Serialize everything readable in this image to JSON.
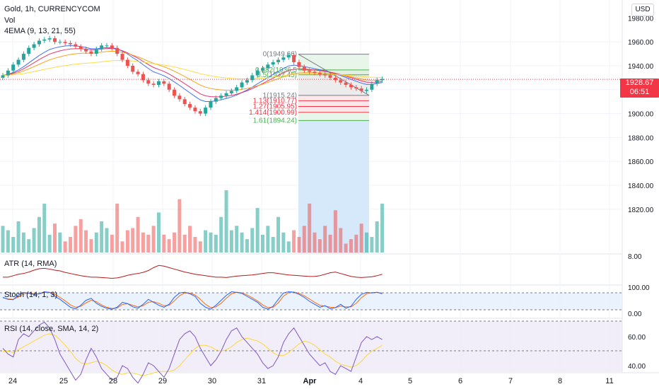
{
  "legend": {
    "symbol": "Gold, 1h, CURRENCYCOM",
    "vol": "Vol",
    "ema": "4EMA (9, 13, 21, 55)",
    "atr": "ATR (14, RMA)",
    "stoch": "Stoch (14, 1, 3)",
    "rsi": "RSI (14, close, SMA, 14, 2)"
  },
  "currency_button": "USD",
  "last_price": {
    "value": "1928.67",
    "countdown": "06:51"
  },
  "price_axis": {
    "ticks": [
      "1960.00",
      "1940.00",
      "1920.00",
      "1900.00",
      "1880.00",
      "1860.00",
      "1840.00",
      "1820.00"
    ],
    "values": [
      1960,
      1940,
      1920,
      1900,
      1880,
      1860,
      1840,
      1820
    ],
    "partial_top": "1980.00",
    "partial_top_value": 1980
  },
  "atr_axis": {
    "ticks": [
      "8.00"
    ]
  },
  "stoch_axis": {
    "ticks": [
      "100.00",
      "0.00"
    ]
  },
  "rsi_axis": {
    "ticks": [
      "60.00",
      "40.00"
    ]
  },
  "time_axis": {
    "labels": [
      "24",
      "25",
      "28",
      "29",
      "30",
      "31",
      "Apr",
      "4",
      "5",
      "6",
      "7",
      "8",
      "11"
    ]
  },
  "fibonacci": [
    {
      "label": "0(1949.66)",
      "price": 1949.66,
      "color": "#787b86"
    },
    {
      "label": "0.382(1936.5",
      "price": 1936.5,
      "color": "#4caf50"
    },
    {
      "label": "0.5(1932.45)",
      "price": 1932.45,
      "color": "#4caf50"
    },
    {
      "label": "1(1915.24)",
      "price": 1915.24,
      "color": "#787b86"
    },
    {
      "label": "1.13(1910.77)",
      "price": 1910.77,
      "color": "#f23645"
    },
    {
      "label": "1.27(1905.95)",
      "price": 1905.95,
      "color": "#f23645"
    },
    {
      "label": "1.414(1900.99)",
      "price": 1900.99,
      "color": "#f23645"
    },
    {
      "label": "1.61(1894.24)",
      "price": 1894.24,
      "color": "#4caf50"
    }
  ],
  "colors": {
    "up": "#26a69a",
    "down": "#ef5350",
    "last_price": "#f23645",
    "ema9": "#2962ff",
    "ema13": "#e91e63",
    "ema21": "#ff9800",
    "ema55": "#fdd835",
    "atr": "#b71c1c",
    "stoch_k": "#2962ff",
    "stoch_d": "#ff6d00",
    "rsi": "#7e57c2",
    "rsi_ma": "#fdd835"
  },
  "price_series": [
    1932,
    1936,
    1941,
    1945,
    1950,
    1955,
    1958,
    1961,
    1962,
    1963,
    1960,
    1960,
    1959,
    1958,
    1956,
    1954,
    1952,
    1950,
    1954,
    1957,
    1957,
    1955,
    1950,
    1945,
    1940,
    1935,
    1933,
    1928,
    1925,
    1924,
    1927,
    1925,
    1920,
    1915,
    1912,
    1908,
    1905,
    1902,
    1900,
    1905,
    1910,
    1913,
    1915,
    1917,
    1919,
    1922,
    1926,
    1928,
    1932,
    1936,
    1938,
    1941,
    1943,
    1945,
    1947,
    1949,
    1943,
    1939,
    1936,
    1935,
    1934,
    1933,
    1932,
    1930,
    1928,
    1926,
    1924,
    1922,
    1921,
    1919,
    1920,
    1925,
    1928,
    1929
  ],
  "volume_series": [
    12,
    10,
    7,
    14,
    9,
    6,
    11,
    16,
    22,
    8,
    13,
    9,
    5,
    7,
    12,
    15,
    10,
    6,
    9,
    14,
    11,
    8,
    22,
    5,
    10,
    11,
    16,
    9,
    8,
    12,
    18,
    8,
    6,
    9,
    24,
    8,
    12,
    7,
    5,
    10,
    9,
    8,
    16,
    28,
    10,
    12,
    9,
    6,
    11,
    20,
    8,
    12,
    7,
    16,
    9,
    5,
    10,
    7,
    12,
    22,
    9,
    6,
    12,
    8,
    19,
    11,
    4,
    6,
    8,
    13,
    9,
    7,
    14,
    22
  ],
  "atr_series": [
    4.6,
    4.6,
    5.0,
    5.4,
    5.6,
    6.0,
    6.5,
    6.9,
    7.0,
    6.8,
    6.5,
    6.3,
    5.9,
    5.6,
    5.3,
    5.0,
    4.8,
    4.6,
    4.6,
    4.5,
    4.4,
    4.3,
    4.4,
    4.7,
    5.1,
    5.4,
    5.6,
    5.9,
    6.4,
    7.2,
    7.8,
    7.6,
    7.2,
    6.8,
    6.4,
    6.0,
    5.7,
    5.4,
    5.2,
    5.0,
    4.8,
    4.6,
    4.6,
    4.5,
    4.7,
    4.9,
    5.0,
    5.1,
    5.2,
    5.4,
    5.6,
    5.8,
    5.8,
    5.6,
    5.4,
    5.2,
    5.1,
    5.0,
    4.9,
    4.8,
    4.8,
    5.0,
    5.4,
    5.8,
    6.0,
    5.6,
    5.2,
    4.8,
    4.6,
    4.5,
    4.6,
    4.7,
    5.0,
    5.4
  ],
  "stoch_k": [
    70,
    60,
    58,
    82,
    95,
    90,
    85,
    88,
    98,
    95,
    75,
    60,
    40,
    20,
    12,
    30,
    55,
    65,
    40,
    25,
    15,
    10,
    20,
    45,
    38,
    22,
    15,
    35,
    60,
    45,
    30,
    20,
    35,
    70,
    92,
    96,
    88,
    75,
    40,
    20,
    10,
    30,
    55,
    80,
    98,
    95,
    90,
    75,
    60,
    45,
    20,
    10,
    25,
    60,
    92,
    98,
    96,
    85,
    70,
    50,
    35,
    20,
    28,
    12,
    18,
    35,
    15,
    25,
    60,
    85,
    95,
    92,
    96,
    88
  ],
  "stoch_d": [
    68,
    62,
    60,
    72,
    88,
    92,
    88,
    87,
    94,
    96,
    85,
    70,
    52,
    32,
    20,
    25,
    42,
    55,
    48,
    32,
    20,
    14,
    16,
    34,
    38,
    30,
    22,
    28,
    45,
    48,
    40,
    28,
    30,
    52,
    78,
    92,
    92,
    82,
    60,
    35,
    18,
    22,
    40,
    65,
    88,
    96,
    93,
    82,
    68,
    52,
    32,
    18,
    20,
    42,
    76,
    94,
    97,
    90,
    78,
    62,
    45,
    30,
    26,
    20,
    18,
    26,
    22,
    22,
    40,
    68,
    88,
    94,
    94,
    92
  ],
  "rsi_series": [
    52,
    48,
    46,
    58,
    62,
    60,
    64,
    68,
    70,
    66,
    58,
    48,
    42,
    36,
    30,
    34,
    44,
    52,
    46,
    38,
    34,
    30,
    32,
    40,
    38,
    32,
    28,
    34,
    42,
    40,
    36,
    32,
    38,
    48,
    58,
    62,
    64,
    60,
    52,
    46,
    40,
    44,
    50,
    58,
    64,
    66,
    60,
    56,
    52,
    48,
    42,
    38,
    40,
    46,
    56,
    62,
    66,
    60,
    54,
    48,
    44,
    40,
    42,
    36,
    34,
    40,
    38,
    36,
    46,
    56,
    60,
    58,
    60,
    58
  ],
  "rsi_ma": [
    50,
    50,
    49,
    51,
    53,
    55,
    57,
    59,
    61,
    62,
    61,
    58,
    54,
    50,
    45,
    42,
    41,
    42,
    43,
    42,
    40,
    37,
    35,
    34,
    35,
    35,
    34,
    33,
    34,
    35,
    36,
    36,
    36,
    37,
    40,
    44,
    48,
    52,
    54,
    54,
    53,
    51,
    50,
    51,
    53,
    56,
    58,
    59,
    58,
    57,
    55,
    52,
    49,
    47,
    47,
    49,
    52,
    55,
    57,
    56,
    54,
    51,
    48,
    46,
    43,
    41,
    40,
    39,
    40,
    43,
    47,
    50,
    52,
    54
  ]
}
